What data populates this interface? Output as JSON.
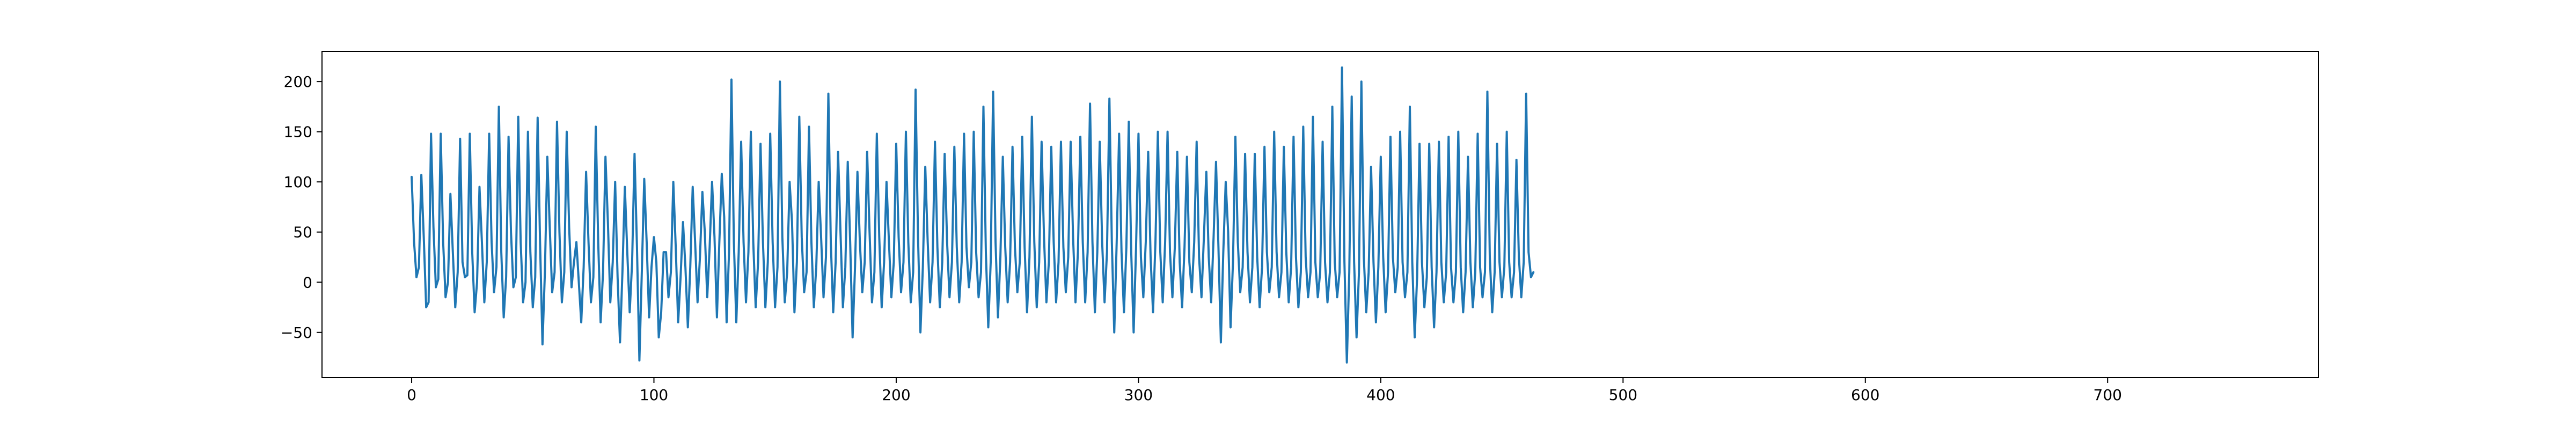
{
  "chart_data": {
    "type": "line",
    "title": "",
    "xlabel": "",
    "ylabel": "",
    "xlim": [
      -37,
      787
    ],
    "ylim": [
      -95,
      230
    ],
    "xticks": [
      0,
      100,
      200,
      300,
      400,
      500,
      600,
      700
    ],
    "yticks": [
      -50,
      0,
      50,
      100,
      150,
      200
    ],
    "xtick_labels": [
      "0",
      "100",
      "200",
      "300",
      "400",
      "500",
      "600",
      "700"
    ],
    "ytick_labels": [
      "−50",
      "0",
      "50",
      "100",
      "150",
      "200"
    ],
    "grid": false,
    "legend": "none",
    "series": [
      {
        "color": "#1f77b4",
        "x_start": 0,
        "x_step": 1,
        "y": [
          105,
          40,
          5,
          15,
          107,
          45,
          -25,
          -20,
          148,
          55,
          -5,
          3,
          148,
          40,
          -15,
          0,
          88,
          30,
          -25,
          10,
          143,
          20,
          5,
          7,
          148,
          30,
          -30,
          0,
          95,
          40,
          -20,
          20,
          148,
          40,
          -10,
          15,
          175,
          30,
          -35,
          5,
          145,
          50,
          -5,
          5,
          165,
          40,
          -20,
          0,
          150,
          30,
          -25,
          5,
          164,
          40,
          -62,
          10,
          125,
          55,
          -10,
          10,
          160,
          50,
          -20,
          10,
          150,
          55,
          -5,
          20,
          40,
          0,
          -40,
          15,
          110,
          40,
          -20,
          5,
          155,
          40,
          -40,
          10,
          125,
          60,
          -20,
          20,
          100,
          5,
          -60,
          10,
          95,
          30,
          -30,
          20,
          128,
          35,
          -78,
          10,
          103,
          40,
          -35,
          15,
          45,
          20,
          -55,
          -30,
          30,
          30,
          -15,
          10,
          100,
          35,
          -40,
          5,
          60,
          15,
          -45,
          15,
          95,
          40,
          -20,
          25,
          90,
          50,
          -15,
          35,
          100,
          45,
          -35,
          40,
          108,
          65,
          -40,
          30,
          202,
          40,
          -40,
          30,
          140,
          40,
          -20,
          30,
          150,
          40,
          -25,
          20,
          138,
          40,
          -25,
          20,
          148,
          40,
          -25,
          15,
          200,
          45,
          -20,
          10,
          100,
          60,
          -30,
          20,
          165,
          45,
          -10,
          10,
          155,
          40,
          -25,
          15,
          100,
          45,
          -15,
          25,
          188,
          40,
          -30,
          20,
          130,
          50,
          -25,
          15,
          120,
          40,
          -55,
          15,
          110,
          40,
          -10,
          20,
          130,
          50,
          -20,
          10,
          148,
          45,
          -25,
          20,
          100,
          40,
          -15,
          20,
          138,
          45,
          -10,
          20,
          150,
          40,
          -20,
          10,
          192,
          45,
          -50,
          15,
          115,
          40,
          -20,
          20,
          140,
          35,
          -25,
          20,
          128,
          40,
          -15,
          20,
          135,
          35,
          -20,
          20,
          148,
          35,
          -5,
          20,
          150,
          30,
          -15,
          10,
          175,
          30,
          -45,
          20,
          190,
          40,
          -35,
          25,
          125,
          35,
          -20,
          20,
          135,
          35,
          -10,
          20,
          145,
          35,
          -30,
          25,
          165,
          40,
          -25,
          20,
          140,
          45,
          -20,
          20,
          135,
          40,
          -20,
          20,
          140,
          35,
          -10,
          25,
          140,
          45,
          -20,
          30,
          145,
          40,
          -20,
          30,
          178,
          40,
          -30,
          30,
          140,
          40,
          -20,
          30,
          183,
          40,
          -50,
          40,
          148,
          30,
          -30,
          35,
          160,
          30,
          -50,
          35,
          148,
          25,
          -15,
          40,
          130,
          25,
          -30,
          40,
          150,
          30,
          -20,
          40,
          150,
          30,
          -15,
          35,
          130,
          20,
          -25,
          35,
          125,
          20,
          -10,
          40,
          140,
          25,
          -15,
          45,
          110,
          25,
          -20,
          45,
          120,
          35,
          -60,
          30,
          100,
          50,
          -45,
          20,
          145,
          40,
          -10,
          15,
          128,
          30,
          -20,
          15,
          128,
          25,
          -25,
          15,
          135,
          30,
          -10,
          15,
          150,
          30,
          -15,
          10,
          135,
          30,
          -20,
          15,
          145,
          25,
          -25,
          10,
          155,
          25,
          -15,
          10,
          165,
          20,
          -15,
          10,
          140,
          20,
          -20,
          10,
          175,
          20,
          -15,
          10,
          214,
          20,
          -80,
          10,
          185,
          20,
          -55,
          10,
          200,
          25,
          -30,
          10,
          115,
          20,
          -40,
          15,
          125,
          25,
          -30,
          10,
          145,
          25,
          -10,
          15,
          150,
          20,
          -15,
          10,
          175,
          20,
          -55,
          5,
          138,
          20,
          -25,
          5,
          138,
          15,
          -45,
          10,
          140,
          20,
          -20,
          10,
          145,
          15,
          -20,
          10,
          150,
          15,
          -30,
          10,
          125,
          20,
          -25,
          10,
          148,
          15,
          -15,
          10,
          190,
          25,
          -30,
          10,
          138,
          20,
          -15,
          15,
          150,
          20,
          -15,
          10,
          122,
          25,
          -15,
          20,
          188,
          30,
          5,
          10
        ]
      }
    ]
  }
}
